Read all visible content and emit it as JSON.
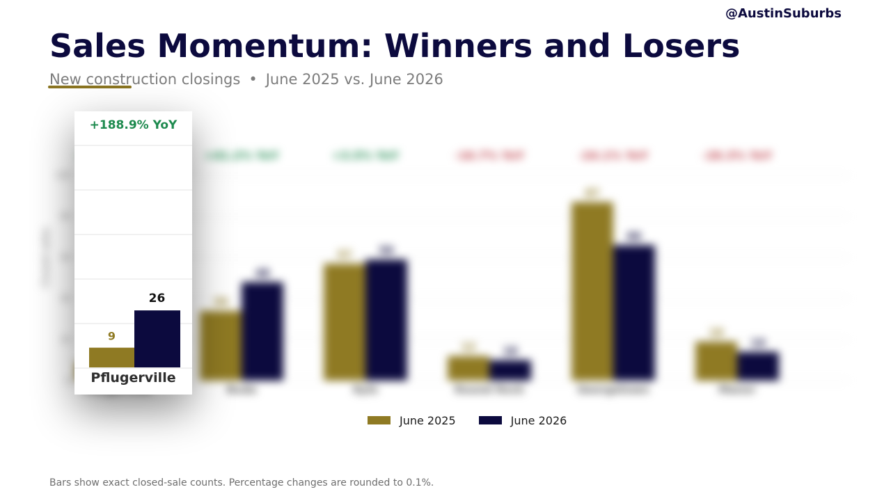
{
  "handle": "@AustinSuburbs",
  "title": "Sales Momentum: Winners and Losers",
  "subtitle": {
    "metric": "New construction closings",
    "separator": "•",
    "period": "June 2025 vs. June 2026"
  },
  "colors": {
    "june_2025": "#8f7a23",
    "june_2026": "#0c0a3e",
    "positive": "#1d8a4e",
    "negative": "#c0404a",
    "accent_underline": "#8a7421"
  },
  "chart_data": {
    "type": "bar",
    "categories": [
      "Pflugerville",
      "Buda",
      "Kyle",
      "Round Rock",
      "Georgetown",
      "Manor"
    ],
    "series": [
      {
        "name": "June 2025",
        "values": [
          9,
          34,
          57,
          12,
          87,
          19
        ]
      },
      {
        "name": "June 2026",
        "values": [
          26,
          48,
          59,
          10,
          66,
          14
        ]
      }
    ],
    "yoy_labels": [
      "+188.9% YoY",
      "+41.2% YoY",
      "+3.5% YoY",
      "-16.7% YoY",
      "-24.1% YoY",
      "-26.3% YoY"
    ],
    "ylabel": "Closed sales",
    "ylim": [
      0,
      110
    ],
    "yticks": [
      0,
      20,
      40,
      60,
      80,
      100
    ],
    "grid": true,
    "legend": "bottom-center"
  },
  "focus": {
    "category": "Pflugerville",
    "yoy": "+188.9% YoY",
    "value_2025": "9",
    "value_2026": "26"
  },
  "legend": {
    "june_2025": "June 2025",
    "june_2026": "June 2026"
  },
  "footnote": "Bars show exact closed-sale counts. Percentage changes are rounded to 0.1%."
}
